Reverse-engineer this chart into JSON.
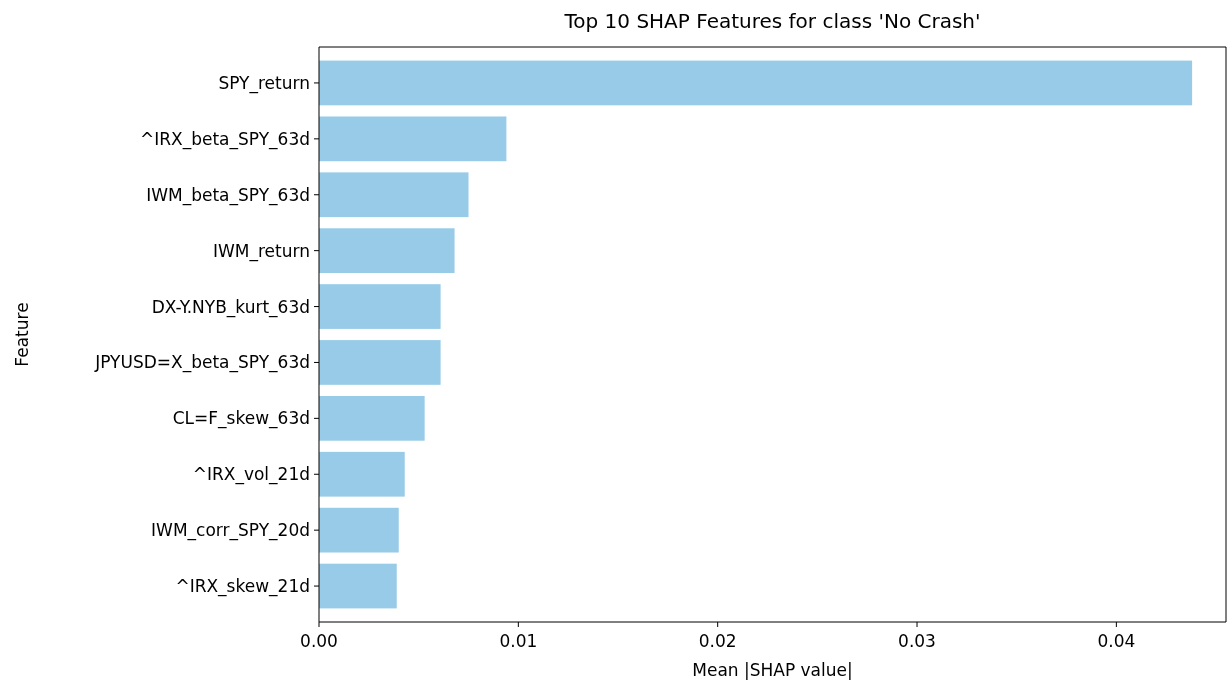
{
  "chart_data": {
    "type": "bar",
    "orientation": "horizontal",
    "title": "Top 10 SHAP Features for class 'No Crash'",
    "xlabel": "Mean |SHAP value|",
    "ylabel": "Feature",
    "categories": [
      "SPY_return",
      "^IRX_beta_SPY_63d",
      "IWM_beta_SPY_63d",
      "IWM_return",
      "DX-Y.NYB_kurt_63d",
      "JPYUSD=X_beta_SPY_63d",
      "CL=F_skew_63d",
      "^IRX_vol_21d",
      "IWM_corr_SPY_20d",
      "^IRX_skew_21d"
    ],
    "values": [
      0.0438,
      0.0094,
      0.0075,
      0.0068,
      0.0061,
      0.0061,
      0.0053,
      0.0043,
      0.004,
      0.0039
    ],
    "color": "#97cbe7",
    "xlim": [
      0,
      0.0455
    ],
    "xticks": [
      {
        "value": 0,
        "label": "0.00"
      },
      {
        "value": 0.01,
        "label": "0.01"
      },
      {
        "value": 0.02,
        "label": "0.02"
      },
      {
        "value": 0.03,
        "label": "0.03"
      },
      {
        "value": 0.04,
        "label": "0.04"
      }
    ]
  }
}
